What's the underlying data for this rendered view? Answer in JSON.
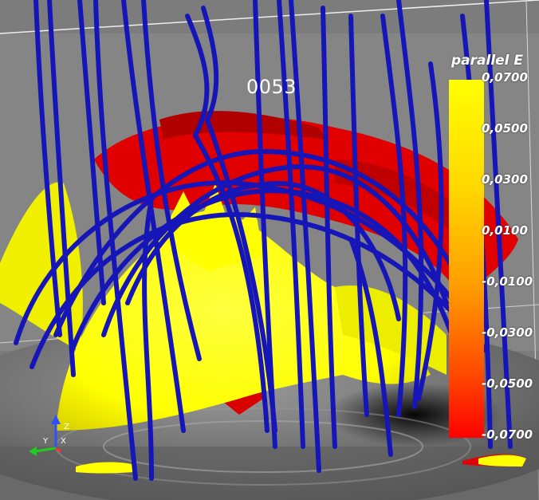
{
  "frame_number": "0053",
  "colorbar": {
    "title": "parallel E",
    "ticks": [
      "0,0700",
      "0,0500",
      "0,0300",
      "0,0100",
      "-0,0100",
      "-0,0300",
      "-0,0500",
      "-0,0700"
    ],
    "top_color": "#ffff00",
    "bottom_color": "#ff0000"
  },
  "axes_labels": {
    "z": "Z",
    "y": "Y",
    "x": "X"
  },
  "colors": {
    "background": "#7a7a7a",
    "floor": "#5a5a5a",
    "field_lines": "#1414b4",
    "iso_yellow": "#ffff00",
    "iso_red": "#e00000",
    "axis_z": "#3050ff",
    "axis_y": "#20cc20",
    "axis_x": "#ff3030"
  }
}
